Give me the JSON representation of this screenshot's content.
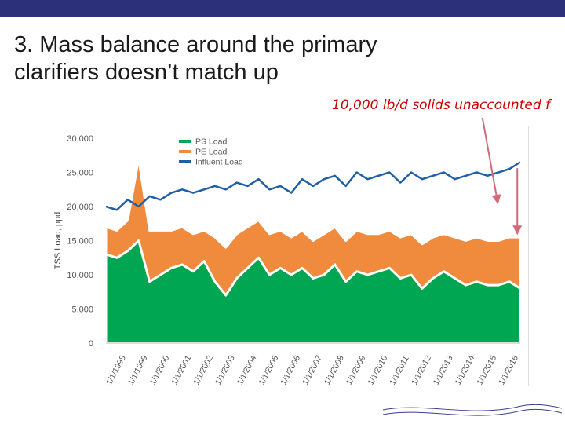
{
  "slide": {
    "title_line1": "3. Mass balance around the primary",
    "title_line2": "clarifiers doesn’t match up",
    "annotation": "10,000 lb/d solids unaccounted f",
    "colors": {
      "topbar": "#2c2f7a",
      "annotation": "#cc0000",
      "arrow": "#d2697a"
    }
  },
  "chart_data": {
    "type": "area",
    "title": "",
    "xlabel": "",
    "ylabel": "TSS Load, ppd",
    "ylim": [
      0,
      30000
    ],
    "yticks": [
      0,
      5000,
      10000,
      15000,
      20000,
      25000,
      30000
    ],
    "ytick_labels": [
      "0",
      "5,000",
      "10,000",
      "15,000",
      "20,000",
      "25,000",
      "30,000"
    ],
    "x_tick_labels": [
      "1/1/1998",
      "1/1/1999",
      "1/1/2000",
      "1/1/2001",
      "1/1/2002",
      "1/1/2003",
      "1/1/2004",
      "1/1/2005",
      "1/1/2006",
      "1/1/2007",
      "1/1/2008",
      "1/1/2009",
      "1/1/2010",
      "1/1/2011",
      "1/1/2012",
      "1/1/2013",
      "1/1/2014",
      "1/1/2015",
      "1/1/2016"
    ],
    "x": [
      1998.0,
      1998.5,
      1999.0,
      1999.5,
      2000.0,
      2000.5,
      2001.0,
      2001.5,
      2002.0,
      2002.5,
      2003.0,
      2003.5,
      2004.0,
      2004.5,
      2005.0,
      2005.5,
      2006.0,
      2006.5,
      2007.0,
      2007.5,
      2008.0,
      2008.5,
      2009.0,
      2009.5,
      2010.0,
      2010.5,
      2011.0,
      2011.5,
      2012.0,
      2012.5,
      2013.0,
      2013.5,
      2014.0,
      2014.5,
      2015.0,
      2015.5,
      2016.0,
      2016.5,
      2017.0
    ],
    "grid": false,
    "legend_position": "top-center",
    "series": [
      {
        "name": "PS Load",
        "color": "#00a651",
        "fill": true,
        "values": [
          13000,
          12500,
          13500,
          15000,
          9000,
          10000,
          11000,
          11500,
          10500,
          12000,
          9000,
          7000,
          9500,
          11000,
          12500,
          10000,
          11000,
          10000,
          11000,
          9500,
          10000,
          11500,
          9000,
          10500,
          10000,
          10500,
          11000,
          9500,
          10000,
          8000,
          9500,
          10500,
          9500,
          8500,
          9000,
          8500,
          8500,
          9000,
          8000
        ]
      },
      {
        "name": "PE Load",
        "color": "#f08a3c",
        "fill": true,
        "values": [
          17000,
          16500,
          18000,
          27000,
          16500,
          16500,
          16500,
          17000,
          16000,
          16500,
          15500,
          14000,
          16000,
          17000,
          18000,
          16000,
          16500,
          15500,
          16500,
          15000,
          16000,
          17000,
          15000,
          16500,
          16000,
          16000,
          16500,
          15500,
          16000,
          14500,
          15500,
          16000,
          15500,
          15000,
          15500,
          15000,
          15000,
          15500,
          15500
        ]
      },
      {
        "name": "Influent Load",
        "color": "#1f5fa6",
        "fill": false,
        "values": [
          20000,
          19500,
          21000,
          20000,
          21500,
          21000,
          22000,
          22500,
          22000,
          22500,
          23000,
          22500,
          23500,
          23000,
          24000,
          22500,
          23000,
          22000,
          24000,
          23000,
          24000,
          24500,
          23000,
          25000,
          24000,
          24500,
          25000,
          23500,
          25000,
          24000,
          24500,
          25000,
          24000,
          24500,
          25000,
          24500,
          25000,
          25500,
          26500
        ]
      }
    ],
    "annotation_arrow": {
      "from_x": 2015.3,
      "from_y": 30000,
      "to_x": 2016.0,
      "to_y": 20500
    },
    "gap_marker": {
      "x": 2016.9,
      "y_top": 25500,
      "y_bottom": 16000
    }
  }
}
